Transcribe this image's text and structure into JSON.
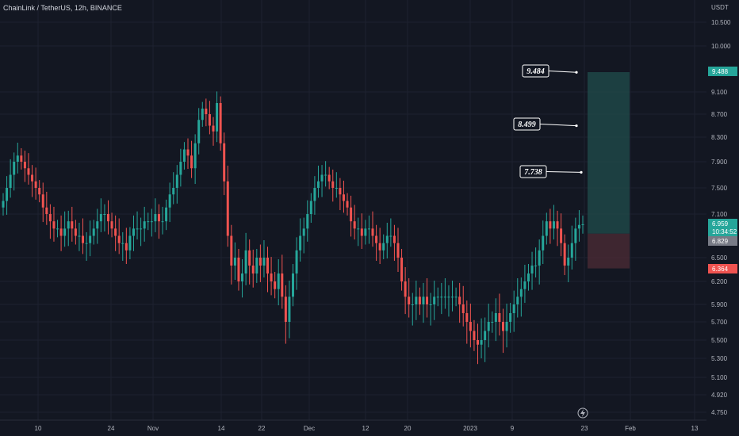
{
  "header": {
    "symbol_line": "ChainLink / TetherUS, 12h, BINANCE"
  },
  "chart_data": {
    "type": "candlestick",
    "title": "ChainLink / TetherUS, 12h, BINANCE",
    "currency_label": "USDT",
    "y_ticks": [
      "10.500",
      "10.000",
      "9.100",
      "8.700",
      "8.300",
      "7.900",
      "7.500",
      "7.100",
      "6.500",
      "6.200",
      "5.900",
      "5.700",
      "5.500",
      "5.300",
      "5.100",
      "4.920",
      "4.750"
    ],
    "x_ticks": [
      "10",
      "24",
      "Nov",
      "14",
      "22",
      "Dec",
      "12",
      "20",
      "2023",
      "9",
      "23",
      "Feb",
      "13"
    ],
    "close_series": [
      7.3,
      7.5,
      7.7,
      7.9,
      8.0,
      7.9,
      7.8,
      7.7,
      7.6,
      7.5,
      7.4,
      7.2,
      7.1,
      7.0,
      6.9,
      6.9,
      6.8,
      6.9,
      7.0,
      6.9,
      6.8,
      6.8,
      6.7,
      6.7,
      6.8,
      6.9,
      7.0,
      7.1,
      7.1,
      7.0,
      6.9,
      6.8,
      6.7,
      6.7,
      6.6,
      6.8,
      6.9,
      6.9,
      6.9,
      7.0,
      7.0,
      7.0,
      7.1,
      7.0,
      7.0,
      7.2,
      7.4,
      7.5,
      7.7,
      7.9,
      8.1,
      8.0,
      7.8,
      8.2,
      8.6,
      8.8,
      8.7,
      8.5,
      8.4,
      8.9,
      8.2,
      7.6,
      6.8,
      6.4,
      6.5,
      6.2,
      6.3,
      6.6,
      6.4,
      6.3,
      6.5,
      6.4,
      6.5,
      6.3,
      6.2,
      6.1,
      6.3,
      6.0,
      5.7,
      6.0,
      6.3,
      6.6,
      6.8,
      6.9,
      7.1,
      7.3,
      7.5,
      7.6,
      7.7,
      7.7,
      7.6,
      7.5,
      7.5,
      7.4,
      7.3,
      7.2,
      7.0,
      6.9,
      6.9,
      6.8,
      6.9,
      6.9,
      6.8,
      6.7,
      6.6,
      6.7,
      6.8,
      6.8,
      6.7,
      6.5,
      6.2,
      6.0,
      5.9,
      5.9,
      6.0,
      5.9,
      6.0,
      5.9,
      5.9,
      6.0,
      6.0,
      6.0,
      6.0,
      6.0,
      6.0,
      6.0,
      5.9,
      5.8,
      5.7,
      5.6,
      5.5,
      5.45,
      5.5,
      5.6,
      5.7,
      5.7,
      5.8,
      5.7,
      5.6,
      5.7,
      5.8,
      5.9,
      6.0,
      6.1,
      6.2,
      6.3,
      6.4,
      6.4,
      6.6,
      6.8,
      7.0,
      6.9,
      7.0,
      6.9,
      6.7,
      6.4,
      6.5,
      6.7,
      6.9,
      6.95,
      6.959
    ],
    "last_price": "6.959",
    "countdown": "10:34:52",
    "prev_price": "6.829",
    "target_price": "9.488",
    "stop_price": "6.364",
    "entry_price": 6.83,
    "annotations": [
      "9.484",
      "8.499",
      "7.738"
    ],
    "annotation_values": [
      9.484,
      8.499,
      7.738
    ],
    "colors": {
      "up": "#26a69a",
      "down": "#ef5350",
      "profit": "#1f4a4a",
      "loss": "#4a2a34",
      "background": "#131722",
      "grid": "#1e2230"
    }
  },
  "price_scale": {
    "last_price": "6.959",
    "countdown": "10:34:52",
    "prev_price": "6.829",
    "target_price": "9.488",
    "stop_price": "6.364"
  },
  "annotations": [
    "9.484",
    "8.499",
    "7.738"
  ],
  "icons": {
    "bottom": "lightning-icon"
  }
}
